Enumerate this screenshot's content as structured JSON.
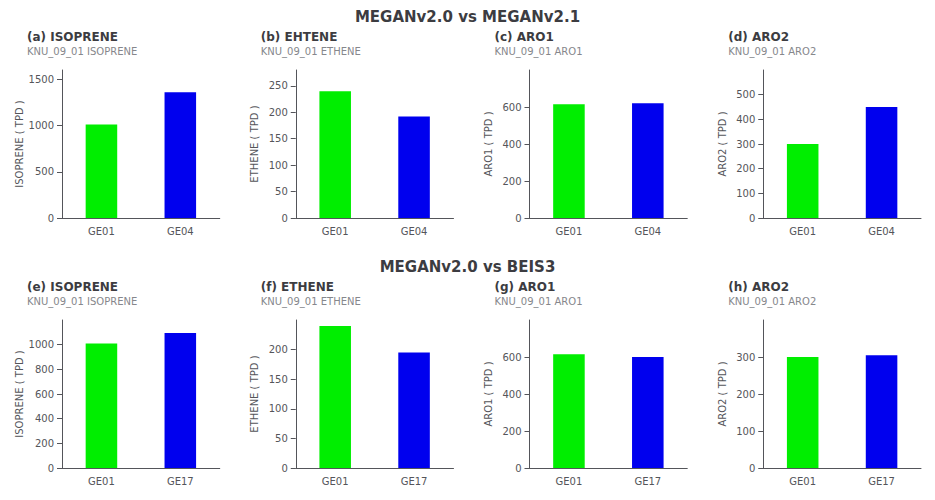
{
  "chart_data": [
    {
      "type": "bar",
      "title": "(a) ISOPRENE",
      "subtitle": "KNU_09_01 ISOPRENE",
      "annotations": [
        "MEGANv2.0 vs MEGANv2.1"
      ],
      "ylabel": "ISOPRENE ( TPD )",
      "categories": [
        "GE01",
        "GE04"
      ],
      "values": [
        1010,
        1360
      ],
      "colors": [
        "#00ee00",
        "#0000ee"
      ],
      "ylim": [
        0,
        1600
      ],
      "yticks": [
        0,
        500,
        1000,
        1500
      ],
      "grid": false
    },
    {
      "type": "bar",
      "title": "(b) EHTENE",
      "subtitle": "KNU_09_01 ETHENE",
      "ylabel": "ETHENE ( TPD )",
      "categories": [
        "GE01",
        "GE04"
      ],
      "values": [
        240,
        192
      ],
      "colors": [
        "#00ee00",
        "#0000ee"
      ],
      "ylim": [
        0,
        280
      ],
      "yticks": [
        0,
        50,
        100,
        150,
        200,
        250
      ],
      "grid": false
    },
    {
      "type": "bar",
      "title": "(c) ARO1",
      "subtitle": "KNU_09_01 ARO1",
      "ylabel": "ARO1 ( TPD )",
      "categories": [
        "GE01",
        "GE04"
      ],
      "values": [
        615,
        620
      ],
      "colors": [
        "#00ee00",
        "#0000ee"
      ],
      "ylim": [
        0,
        800
      ],
      "yticks": [
        0,
        200,
        400,
        600
      ],
      "grid": false
    },
    {
      "type": "bar",
      "title": "(d) ARO2",
      "subtitle": "KNU_09_01 ARO2",
      "ylabel": "ARO2 ( TPD )",
      "categories": [
        "GE01",
        "GE04"
      ],
      "values": [
        300,
        450
      ],
      "colors": [
        "#00ee00",
        "#0000ee"
      ],
      "ylim": [
        0,
        600
      ],
      "yticks": [
        0,
        100,
        200,
        300,
        400,
        500
      ],
      "grid": false
    },
    {
      "type": "bar",
      "title": "(e) ISOPRENE",
      "subtitle": "KNU_09_01 ISOPRENE",
      "annotations": [
        "MEGANv2.0 vs BEIS3"
      ],
      "ylabel": "ISOPRENE ( TPD )",
      "categories": [
        "GE01",
        "GE17"
      ],
      "values": [
        1010,
        1095
      ],
      "colors": [
        "#00ee00",
        "#0000ee"
      ],
      "ylim": [
        0,
        1200
      ],
      "yticks": [
        0,
        200,
        400,
        600,
        800,
        1000
      ],
      "grid": false
    },
    {
      "type": "bar",
      "title": "(f) ETHENE",
      "subtitle": "KNU_09_01 ETHENE",
      "ylabel": "ETHENE ( TPD )",
      "categories": [
        "GE01",
        "GE17"
      ],
      "values": [
        240,
        195
      ],
      "colors": [
        "#00ee00",
        "#0000ee"
      ],
      "ylim": [
        0,
        250
      ],
      "yticks": [
        0,
        50,
        100,
        150,
        200
      ],
      "grid": false
    },
    {
      "type": "bar",
      "title": "(g) ARO1",
      "subtitle": "KNU_09_01 ARO1",
      "ylabel": "ARO1 ( TPD )",
      "categories": [
        "GE01",
        "GE17"
      ],
      "values": [
        615,
        600
      ],
      "colors": [
        "#00ee00",
        "#0000ee"
      ],
      "ylim": [
        0,
        800
      ],
      "yticks": [
        0,
        200,
        400,
        600
      ],
      "grid": false
    },
    {
      "type": "bar",
      "title": "(h) ARO2",
      "subtitle": "KNU_09_01 ARO2",
      "ylabel": "ARO2 ( TPD )",
      "categories": [
        "GE01",
        "GE17"
      ],
      "values": [
        300,
        305
      ],
      "colors": [
        "#00ee00",
        "#0000ee"
      ],
      "ylim": [
        0,
        400
      ],
      "yticks": [
        0,
        100,
        200,
        300
      ],
      "grid": false
    }
  ]
}
